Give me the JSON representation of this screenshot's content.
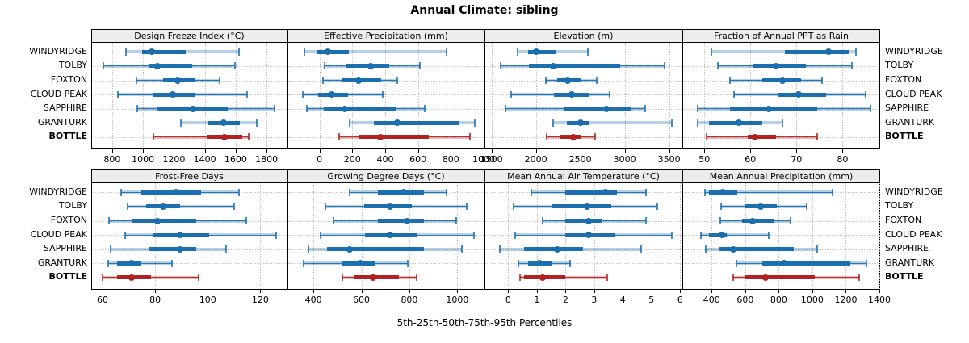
{
  "title": "Annual Climate: sibling",
  "caption": "5th-25th-50th-75th-95th Percentiles",
  "stations": [
    "WINDYRIDGE",
    "TOLBY",
    "FOXTON",
    "CLOUD PEAK",
    "SAPPHIRE",
    "GRANTURK",
    "BOTTLE"
  ],
  "highlight_station": "BOTTLE",
  "colors": {
    "series": "#1b6fae",
    "highlight": "#b22222",
    "strip_bg": "#ececec",
    "grid": "#c9c9c9",
    "border": "#000000"
  },
  "chart_data": [
    {
      "type": "dotplot-percentile",
      "title": "Design Freeze Index (°C)",
      "row": 0,
      "col": 0,
      "xlim": [
        670,
        1930
      ],
      "ticks": [
        800,
        1000,
        1200,
        1400,
        1600,
        1800
      ],
      "percentiles": [
        5,
        25,
        50,
        75,
        95
      ],
      "values": {
        "WINDYRIDGE": [
          890,
          995,
          1055,
          1275,
          1620
        ],
        "TOLBY": [
          745,
          1040,
          1095,
          1320,
          1595
        ],
        "FOXTON": [
          960,
          1130,
          1225,
          1335,
          1495
        ],
        "CLOUD PEAK": [
          835,
          1065,
          1195,
          1335,
          1675
        ],
        "SAPPHIRE": [
          965,
          1090,
          1325,
          1550,
          1850
        ],
        "GRANTURK": [
          1245,
          1420,
          1520,
          1625,
          1735
        ],
        "BOTTLE": [
          1065,
          1410,
          1525,
          1645,
          1685
        ]
      }
    },
    {
      "type": "dotplot-percentile",
      "title": "Effective Precipitation (mm)",
      "row": 0,
      "col": 1,
      "xlim": [
        -190,
        1000
      ],
      "ticks": [
        0,
        200,
        400,
        600,
        800,
        1000
      ],
      "percentiles": [
        5,
        25,
        50,
        75,
        95
      ],
      "values": {
        "WINDYRIDGE": [
          -90,
          -20,
          50,
          180,
          775
        ],
        "TOLBY": [
          30,
          160,
          310,
          425,
          610
        ],
        "FOXTON": [
          20,
          135,
          240,
          375,
          475
        ],
        "CLOUD PEAK": [
          -100,
          -10,
          75,
          175,
          385
        ],
        "SAPPHIRE": [
          -75,
          25,
          155,
          470,
          640
        ],
        "GRANTURK": [
          185,
          330,
          475,
          855,
          945
        ],
        "BOTTLE": [
          120,
          245,
          370,
          665,
          915
        ]
      }
    },
    {
      "type": "dotplot-percentile",
      "title": "Elevation (m)",
      "row": 0,
      "col": 2,
      "xlim": [
        1430,
        3640
      ],
      "ticks": [
        1500,
        2000,
        2500,
        3000,
        3500
      ],
      "percentiles": [
        5,
        25,
        50,
        75,
        95
      ],
      "values": {
        "WINDYRIDGE": [
          1795,
          1910,
          2005,
          2220,
          2585
        ],
        "TOLBY": [
          1600,
          1920,
          2190,
          2945,
          3445
        ],
        "FOXTON": [
          2115,
          2235,
          2360,
          2510,
          2685
        ],
        "CLOUD PEAK": [
          1720,
          2205,
          2405,
          2595,
          2830
        ],
        "SAPPHIRE": [
          1655,
          2315,
          2795,
          3080,
          3230
        ],
        "GRANTURK": [
          2190,
          2345,
          2500,
          2600,
          3535
        ],
        "BOTTLE": [
          2120,
          2265,
          2420,
          2510,
          2670
        ]
      }
    },
    {
      "type": "dotplot-percentile",
      "title": "Fraction of Annual PPT as Rain",
      "row": 0,
      "col": 3,
      "xlim": [
        45.4,
        88
      ],
      "ticks": [
        50,
        60,
        70,
        80
      ],
      "percentiles": [
        5,
        25,
        50,
        75,
        95
      ],
      "values": {
        "WINDYRIDGE": [
          51.5,
          67.5,
          77,
          81.5,
          83
        ],
        "TOLBY": [
          53,
          60.5,
          65.5,
          72,
          82
        ],
        "FOXTON": [
          55.5,
          62.5,
          67,
          71,
          75.5
        ],
        "CLOUD PEAK": [
          56.5,
          66,
          70.5,
          76.5,
          85
        ],
        "SAPPHIRE": [
          48.5,
          55.5,
          64,
          74.5,
          86
        ],
        "GRANTURK": [
          48.5,
          51,
          57.5,
          62.5,
          67
        ],
        "BOTTLE": [
          50.5,
          59.5,
          61,
          65.5,
          74.5
        ]
      }
    },
    {
      "type": "dotplot-percentile",
      "title": "Frost-Free Days",
      "row": 1,
      "col": 0,
      "xlim": [
        56,
        130
      ],
      "ticks": [
        60,
        80,
        100,
        120
      ],
      "percentiles": [
        5,
        25,
        50,
        75,
        95
      ],
      "values": {
        "WINDYRIDGE": [
          67,
          74.5,
          88,
          97.5,
          112
        ],
        "TOLBY": [
          69.5,
          76.5,
          83,
          89.5,
          110
        ],
        "FOXTON": [
          62.5,
          71,
          81,
          95.5,
          114.5
        ],
        "CLOUD PEAK": [
          68.5,
          79,
          89.5,
          100.5,
          126
        ],
        "SAPPHIRE": [
          63,
          77.5,
          89.5,
          95.5,
          107
        ],
        "GRANTURK": [
          62,
          65.5,
          71,
          74.5,
          86.5
        ],
        "BOTTLE": [
          60,
          65.5,
          71,
          78.5,
          96.5
        ]
      }
    },
    {
      "type": "dotplot-percentile",
      "title": "Growing Degree Days (°C)",
      "row": 1,
      "col": 1,
      "xlim": [
        295,
        1110
      ],
      "ticks": [
        400,
        600,
        800,
        1000
      ],
      "percentiles": [
        5,
        25,
        50,
        75,
        95
      ],
      "values": {
        "WINDYRIDGE": [
          550,
          670,
          775,
          860,
          955
        ],
        "TOLBY": [
          450,
          610,
          720,
          810,
          1040
        ],
        "FOXTON": [
          485,
          670,
          790,
          860,
          995
        ],
        "CLOUD PEAK": [
          430,
          615,
          720,
          830,
          1070
        ],
        "SAPPHIRE": [
          380,
          455,
          550,
          860,
          1020
        ],
        "GRANTURK": [
          360,
          520,
          595,
          660,
          795
        ],
        "BOTTLE": [
          520,
          570,
          650,
          755,
          830
        ]
      }
    },
    {
      "type": "dotplot-percentile",
      "title": "Mean Annual Air Temperature (°C)",
      "row": 1,
      "col": 2,
      "xlim": [
        -0.8,
        6.05
      ],
      "ticks": [
        0,
        1,
        2,
        3,
        4,
        5,
        6
      ],
      "percentiles": [
        5,
        25,
        50,
        75,
        95
      ],
      "values": {
        "WINDYRIDGE": [
          0.8,
          2.0,
          3.4,
          3.8,
          4.8
        ],
        "TOLBY": [
          0.2,
          1.55,
          2.75,
          3.6,
          5.2
        ],
        "FOXTON": [
          1.2,
          2.0,
          2.8,
          3.3,
          4.8
        ],
        "CLOUD PEAK": [
          0.25,
          2.0,
          2.8,
          3.7,
          5.7
        ],
        "SAPPHIRE": [
          -0.3,
          0.55,
          1.7,
          2.6,
          4.65
        ],
        "GRANTURK": [
          0.35,
          0.7,
          1.1,
          1.5,
          2.15
        ],
        "BOTTLE": [
          0.4,
          0.55,
          1.2,
          2.0,
          3.45
        ]
      }
    },
    {
      "type": "dotplot-percentile",
      "title": "Mean Annual Precipitation (mm)",
      "row": 1,
      "col": 3,
      "xlim": [
        230,
        1400
      ],
      "ticks": [
        400,
        600,
        800,
        1000,
        1200,
        1400
      ],
      "percentiles": [
        5,
        25,
        50,
        75,
        95
      ],
      "values": {
        "WINDYRIDGE": [
          360,
          385,
          465,
          555,
          1120
        ],
        "TOLBY": [
          455,
          600,
          690,
          790,
          965
        ],
        "FOXTON": [
          450,
          580,
          645,
          770,
          870
        ],
        "CLOUD PEAK": [
          335,
          385,
          460,
          490,
          740
        ],
        "SAPPHIRE": [
          365,
          440,
          530,
          890,
          1030
        ],
        "GRANTURK": [
          550,
          700,
          830,
          1225,
          1325
        ],
        "BOTTLE": [
          530,
          600,
          720,
          1015,
          1280
        ]
      }
    }
  ]
}
